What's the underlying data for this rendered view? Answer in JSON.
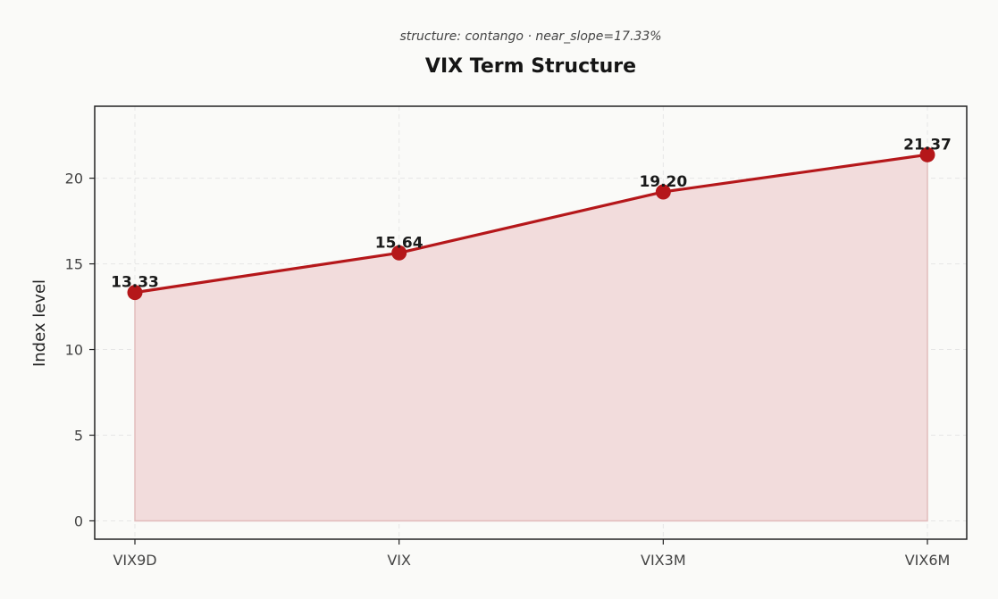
{
  "chart_data": {
    "type": "area",
    "title": "VIX Term Structure",
    "subtitle": "structure: contango · near_slope=17.33%",
    "xlabel": "",
    "ylabel": "Index level",
    "categories": [
      "VIX9D",
      "VIX",
      "VIX3M",
      "VIX6M"
    ],
    "values": [
      13.33,
      15.64,
      19.2,
      21.37
    ],
    "data_labels": [
      "13.33",
      "15.64",
      "19.20",
      "21.37"
    ],
    "yticks": [
      0,
      5,
      10,
      15,
      20
    ],
    "ylim": [
      -1.07,
      24.2
    ],
    "grid": true,
    "legend": "none",
    "colors": {
      "line": "#b5171a",
      "fill": "#f2dcdc",
      "fill_edge": "#e1bcbc",
      "grid": "#e6e6e6",
      "axes": "#222222"
    }
  }
}
